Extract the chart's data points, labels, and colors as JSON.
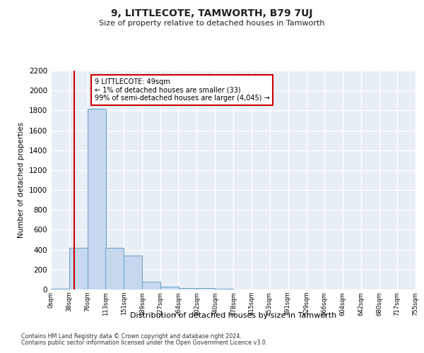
{
  "title": "9, LITTLECOTE, TAMWORTH, B79 7UJ",
  "subtitle": "Size of property relative to detached houses in Tamworth",
  "xlabel": "Distribution of detached houses by size in Tamworth",
  "ylabel": "Number of detached properties",
  "bar_color": "#c5d8ee",
  "bar_edge_color": "#6a9ec5",
  "background_color": "#e8eef6",
  "grid_color": "#ffffff",
  "annotation_text": "9 LITTLECOTE: 49sqm\n← 1% of detached houses are smaller (33)\n99% of semi-detached houses are larger (4,045) →",
  "vline_x": 49,
  "vline_color": "#cc0000",
  "annotation_box_color": "#cc0000",
  "bin_edges": [
    0,
    38,
    76,
    113,
    151,
    189,
    227,
    264,
    302,
    340,
    378,
    415,
    453,
    491,
    529,
    566,
    604,
    642,
    680,
    717,
    755
  ],
  "bar_heights": [
    10,
    420,
    1820,
    420,
    340,
    75,
    25,
    15,
    15,
    5,
    0,
    0,
    0,
    0,
    0,
    0,
    0,
    0,
    0,
    0
  ],
  "ylim": [
    0,
    2200
  ],
  "ytick_step": 200,
  "footnote1": "Contains HM Land Registry data © Crown copyright and database right 2024.",
  "footnote2": "Contains public sector information licensed under the Open Government Licence v3.0."
}
